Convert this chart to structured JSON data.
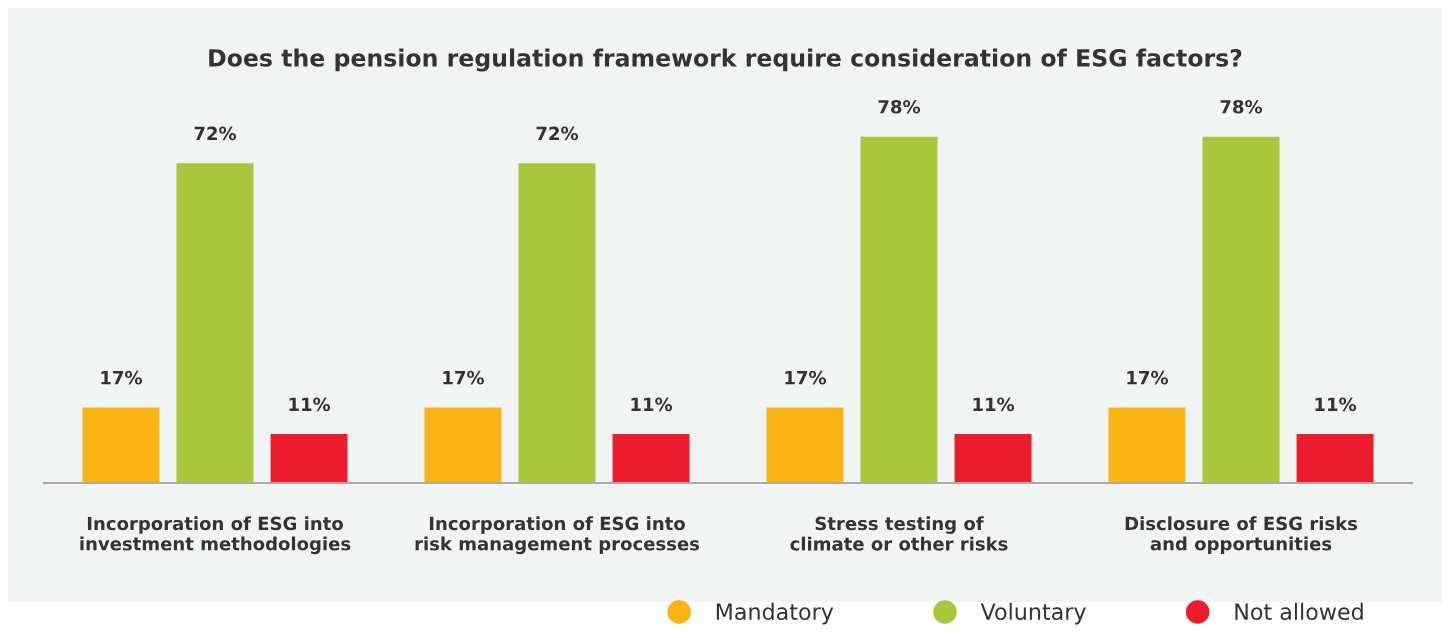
{
  "chart_data": {
    "type": "bar",
    "title": "Does the pension regulation framework require consideration of ESG factors?",
    "categories": [
      "Incorporation of ESG into\ninvestment methodologies",
      "Incorporation of ESG into\nrisk management processes",
      "Stress testing of\nclimate or other risks",
      "Disclosure of ESG risks\nand opportunities"
    ],
    "series": [
      {
        "name": "Mandatory",
        "color": "#fbb416",
        "values": [
          17,
          17,
          17,
          17
        ],
        "value_labels": [
          "17%",
          "17%",
          "17%",
          "17%"
        ]
      },
      {
        "name": "Voluntary",
        "color": "#a8c73a",
        "values": [
          72,
          72,
          78,
          78
        ],
        "value_labels": [
          "72%",
          "72%",
          "78%",
          "78%"
        ]
      },
      {
        "name": "Not allowed",
        "color": "#ec1c2c",
        "values": [
          11,
          11,
          11,
          11
        ],
        "value_labels": [
          "11%",
          "11%",
          "11%",
          "11%"
        ]
      }
    ],
    "tick_labels": "x",
    "grid": false,
    "legend": "bottom right",
    "marker": "circle"
  }
}
